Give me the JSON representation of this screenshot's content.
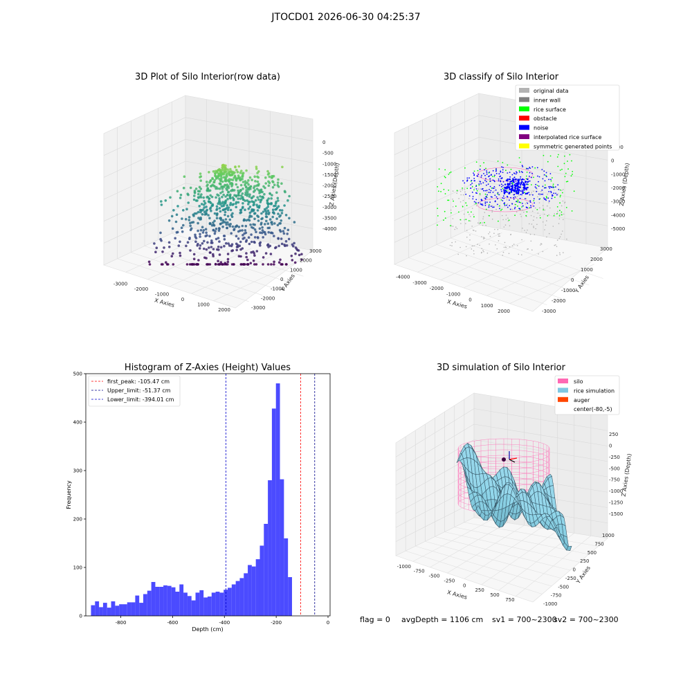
{
  "suptitle": "JTOCD01 2026-06-30 04:25:37",
  "footer": {
    "flag": "flag = 0",
    "avg": "avgDepth = 1106 cm",
    "sv1": "sv1 = 700~2300",
    "sv2": "sv2 = 700~2300"
  },
  "chart_data": [
    {
      "type": "scatter",
      "title": "3D Plot of Silo Interior(row data)",
      "xlabel": "X Axies",
      "ylabel": "Y Axies",
      "zlabel": "Z Axies (Depth)",
      "x_ticks": [
        "-3000",
        "-2000",
        "-1000",
        "0",
        "1000",
        "2000"
      ],
      "y_ticks": [
        "-3000",
        "-2000",
        "-1000",
        "0",
        "1000",
        "2000",
        "3000"
      ],
      "z_ticks": [
        "0",
        "-500",
        "-1000",
        "-1500",
        "-2000",
        "-2500",
        "-3000",
        "-3500",
        "-4000"
      ],
      "colormap": "viridis",
      "grid": true
    },
    {
      "type": "scatter",
      "title": "3D classify of Silo Interior",
      "xlabel": "X Axies",
      "ylabel": "Y Axies",
      "zlabel": "Z Axies (Depth)",
      "x_ticks": [
        "-4000",
        "-3000",
        "-2000",
        "-1000",
        "0",
        "1000",
        "2000"
      ],
      "y_ticks": [
        "-3000",
        "-2000",
        "-1000",
        "0",
        "1000",
        "2000",
        "3000"
      ],
      "z_ticks": [
        "1000",
        "0",
        "-1000",
        "-2000",
        "-3000",
        "-4000",
        "-5000"
      ],
      "legend_position": "top-right",
      "legend": [
        {
          "label": "original data",
          "color": "#b3b3b3"
        },
        {
          "label": "inner wall",
          "color": "#808080"
        },
        {
          "label": "rice surface",
          "color": "#00ff00"
        },
        {
          "label": "obstacle",
          "color": "#ff0000"
        },
        {
          "label": "noise",
          "color": "#0000ff"
        },
        {
          "label": "interpolated rice surface",
          "color": "#800080"
        },
        {
          "label": "symmetric generated points",
          "color": "#ffff00"
        }
      ],
      "grid": true
    },
    {
      "type": "bar",
      "title": "Histogram of Z-Axies (Height) Values",
      "xlabel": "Depth (cm)",
      "ylabel": "Frequency",
      "xlim": [
        -935,
        8
      ],
      "ylim": [
        0,
        500
      ],
      "x_ticks": [
        -800,
        -600,
        -400,
        -200,
        0
      ],
      "y_ticks": [
        0,
        100,
        200,
        300,
        400,
        500
      ],
      "bar_color": "#4b4bff",
      "bin_start": -915,
      "bin_width": 15.52,
      "values": [
        22,
        30,
        18,
        27,
        17,
        30,
        21,
        24,
        24,
        28,
        28,
        42,
        27,
        45,
        52,
        70,
        60,
        60,
        63,
        62,
        59,
        50,
        65,
        48,
        41,
        32,
        48,
        53,
        38,
        40,
        48,
        50,
        48,
        54,
        58,
        65,
        72,
        78,
        88,
        105,
        102,
        117,
        145,
        190,
        280,
        428,
        480,
        282,
        160,
        80
      ],
      "reference_lines": [
        {
          "label": "first_peak: -105.47 cm",
          "value": -105.47,
          "color": "#ff0000"
        },
        {
          "label": "Upper_limit: -51.37 cm",
          "value": -51.37,
          "color": "#00008b"
        },
        {
          "label": "Lower_limit: -394.01 cm",
          "value": -394.01,
          "color": "#0000cd"
        }
      ],
      "legend_position": "top-left"
    },
    {
      "type": "surface",
      "title": "3D simulation of Silo Interior",
      "xlabel": "X Axies",
      "ylabel": "Y Axies",
      "zlabel": "Z Axies (Depth)",
      "x_ticks": [
        "-1000",
        "-750",
        "-500",
        "-250",
        "0",
        "250",
        "500",
        "750"
      ],
      "y_ticks": [
        "-1000",
        "-750",
        "-500",
        "-250",
        "0",
        "250",
        "500",
        "750",
        "1000"
      ],
      "z_ticks": [
        "250",
        "0",
        "-250",
        "-500",
        "-750",
        "-1000",
        "-1250",
        "-1500"
      ],
      "legend_position": "top-right",
      "legend": [
        {
          "label": "silo",
          "color": "#ff69b4"
        },
        {
          "label": "rice simulation",
          "color": "#7ec8e3"
        },
        {
          "label": "auger",
          "color": "#ff4500"
        },
        {
          "label": "center(-80,-5)",
          "color": "#ffffff"
        }
      ],
      "grid": true
    }
  ]
}
